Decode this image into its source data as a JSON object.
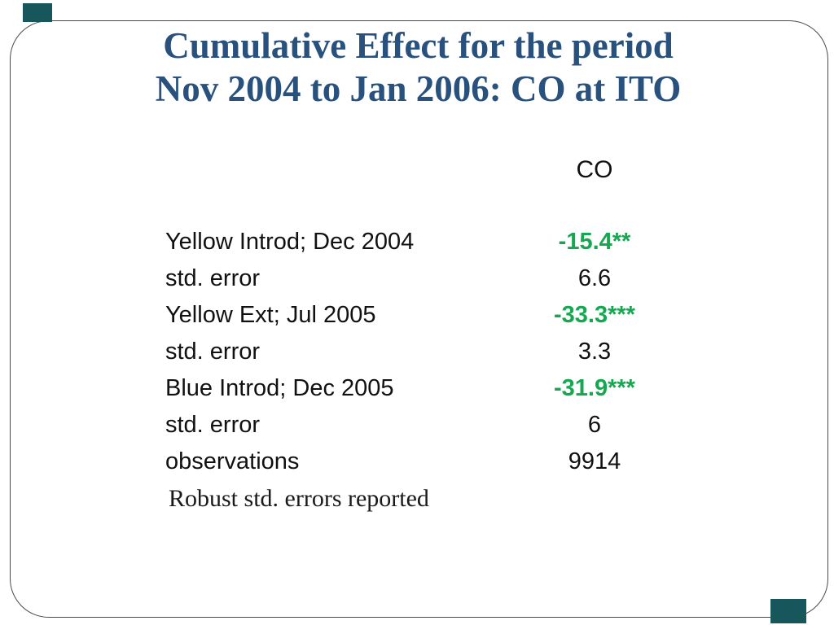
{
  "slide": {
    "title_line1": "Cumulative Effect for the period",
    "title_line2": "Nov 2004 to Jan 2006: CO at ITO",
    "title_color": "#28517E",
    "accent_square_color": "#17565A",
    "panel_border_color": "#4a4a4a",
    "value_highlight_color": "#15A850"
  },
  "table": {
    "column_header": "CO",
    "rows": [
      {
        "label": "Yellow Introd; Dec 2004",
        "value": "-15.4**",
        "highlight": true
      },
      {
        "label": "std. error",
        "value": "6.6",
        "highlight": false
      },
      {
        "label": "Yellow Ext; Jul 2005",
        "value": "-33.3***",
        "highlight": true
      },
      {
        "label": "std. error",
        "value": "3.3",
        "highlight": false
      },
      {
        "label": "Blue Introd; Dec 2005",
        "value": "-31.9***",
        "highlight": true
      },
      {
        "label": "std. error",
        "value": "6",
        "highlight": false
      },
      {
        "label": "observations",
        "value": "9914",
        "highlight": false
      }
    ],
    "note": "Robust std. errors reported"
  }
}
